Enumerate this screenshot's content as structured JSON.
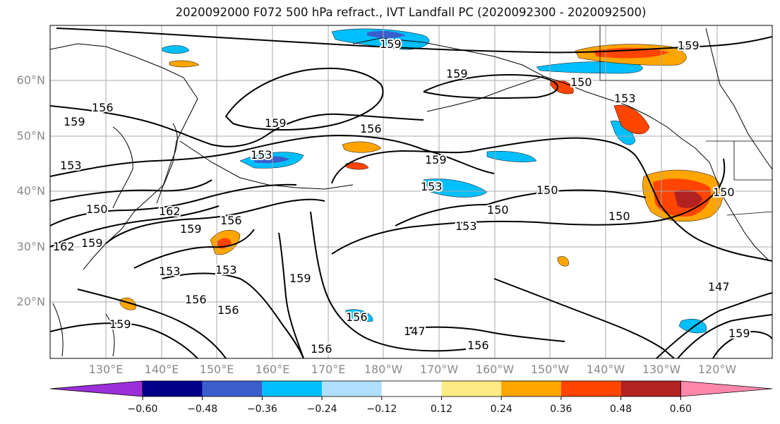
{
  "title": "2020092000 F072 500 hPa refract., IVT Landfall PC (2020092300 - 2020092500)",
  "map": {
    "lat_labels": [
      "60°N",
      "50°N",
      "40°N",
      "30°N",
      "20°N"
    ],
    "lon_labels": [
      "130°E",
      "140°E",
      "150°E",
      "160°E",
      "170°E",
      "180°W",
      "170°W",
      "160°W",
      "150°W",
      "140°W",
      "130°W",
      "120°W"
    ],
    "contour_labels": [
      "159",
      "159",
      "156",
      "159",
      "159",
      "156",
      "153",
      "153",
      "159",
      "153",
      "150",
      "150",
      "153",
      "150",
      "150",
      "162",
      "159",
      "156",
      "150",
      "153",
      "162",
      "159",
      "153",
      "159",
      "156",
      "156",
      "147",
      "156",
      "156",
      "147",
      "159",
      "156",
      "159",
      "153",
      "159",
      "150"
    ]
  },
  "colorbar": {
    "colors": [
      "#9b30d9",
      "#00008b",
      "#3a5fcd",
      "#00bfff",
      "#b0e0ff",
      "#ffffff",
      "#ffeb84",
      "#ffa500",
      "#ff4500",
      "#b22222",
      "#ff88aa"
    ],
    "tick_labels": [
      "−0.60",
      "−0.48",
      "−0.36",
      "−0.24",
      "−0.12",
      "0.12",
      "0.24",
      "0.36",
      "0.48",
      "0.60"
    ]
  }
}
